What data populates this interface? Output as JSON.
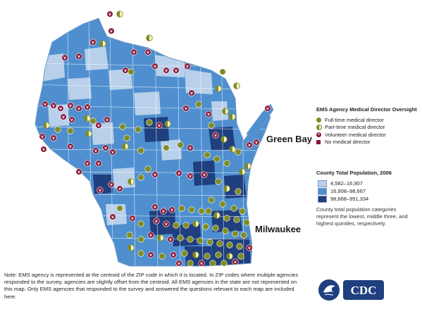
{
  "map": {
    "cities": [
      {
        "name": "Green Bay"
      },
      {
        "name": "Milwaukee"
      }
    ],
    "colors": {
      "low": "#b8d0ea",
      "middle": "#4f8fcf",
      "high": "#1f3f7f",
      "full_time": "#7f8c22",
      "part_time_light": "#f7f1ca",
      "volunteer": "#8a1538",
      "none": "#8a1538"
    }
  },
  "legend_director": {
    "title": "EMS Agency Medical Director Oversight",
    "items": [
      {
        "label": "Full-time medical director",
        "icon": "full-time-dot"
      },
      {
        "label": "Part-time medical director",
        "icon": "part-time-half-dot"
      },
      {
        "label": "Volunteer medical director",
        "icon": "volunteer-v-dot"
      },
      {
        "label": "No medical director",
        "icon": "none-square"
      }
    ]
  },
  "legend_population": {
    "title": "County Total Population, 2006",
    "items": [
      {
        "label": "4,582–16,907",
        "color": "#b8d0ea"
      },
      {
        "label": "16,908–98,667",
        "color": "#4f8fcf"
      },
      {
        "label": "98,668–951,334",
        "color": "#1f3f7f"
      }
    ],
    "note": "County total population categories represent the lowest, middle three, and highest quintiles, respectively."
  },
  "note": "Note: EMS agency is represented at the centroid of the ZIP code in which it is located. In ZIP codes where multiple agencies responded to the survey, agencies are slightly offset from the centroid. All EMS agencies in the state are not represented on this map. Only EMS agencies that responded to the survey and answered the questions relevant to each map are included here.",
  "logo": {
    "text": "CDC",
    "icon": "hhs-eagle-icon"
  }
}
